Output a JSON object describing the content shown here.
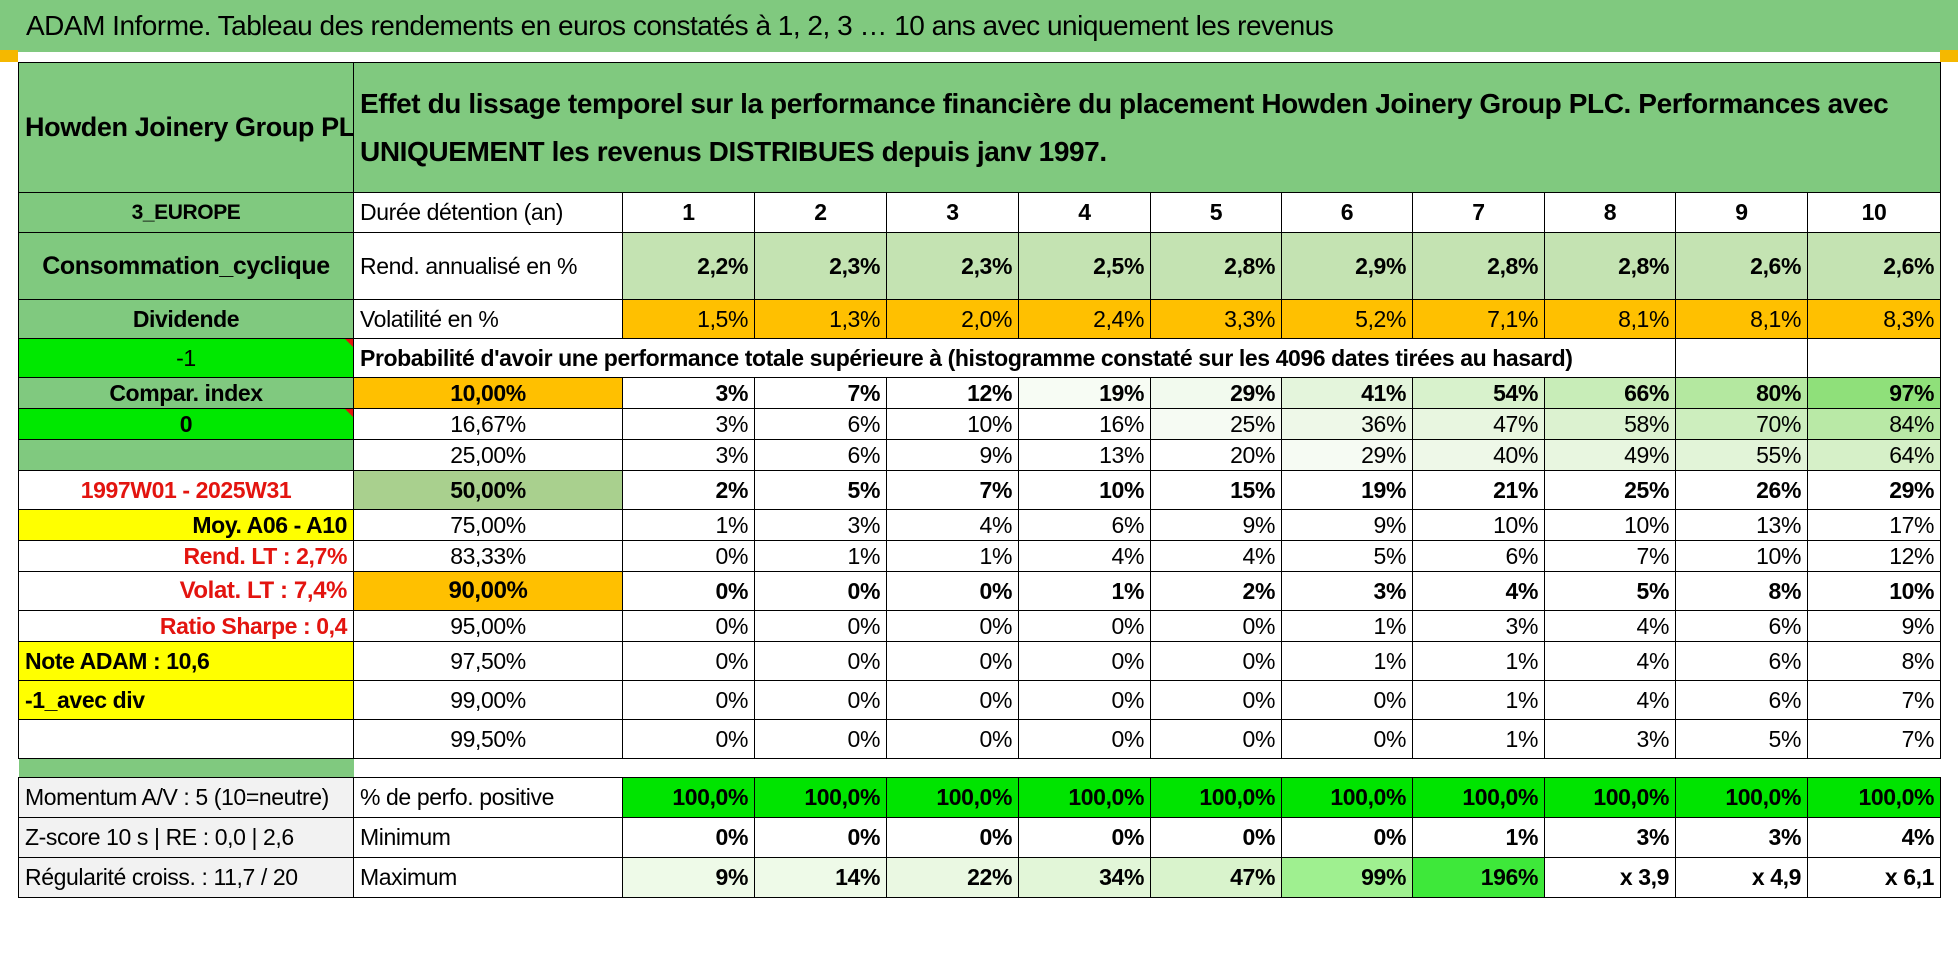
{
  "page_title": "ADAM Informe. Tableau des rendements en euros constatés à 1, 2, 3 … 10 ans avec uniquement les revenus",
  "header": {
    "company": "Howden Joinery Group PLC",
    "description": "Effet du lissage temporel sur la performance financière du placement Howden Joinery Group PLC. Performances avec UNIQUEMENT les revenus DISTRIBUES depuis janv 1997."
  },
  "left_panel": {
    "region": "3_EUROPE",
    "sector": "Consommation_cyclique",
    "type": "Dividende",
    "value_neg1": "-1",
    "compar_index": "Compar. index",
    "value_zero": "0",
    "period": "1997W01 - 2025W31",
    "moy": "Moy. A06 - A10",
    "rend_lt": "Rend. LT :    2,7%",
    "volat_lt": "Volat. LT :    7,4%",
    "sharpe": "Ratio Sharpe :    0,4",
    "note": "Note ADAM : 10,6",
    "avec_div": "-1_avec div",
    "momentum": "Momentum A/V : 5 (10=neutre)",
    "zscore": "Z-score 10 s | RE : 0,0 | 2,6",
    "regularite": "Régularité croiss. : 11,7 / 20"
  },
  "duration": {
    "label": "Durée détention (an)",
    "years": [
      "1",
      "2",
      "3",
      "4",
      "5",
      "6",
      "7",
      "8",
      "9",
      "10"
    ]
  },
  "rend": {
    "label": "Rend. annualisé en %",
    "values": [
      "2,2%",
      "2,3%",
      "2,3%",
      "2,5%",
      "2,8%",
      "2,9%",
      "2,8%",
      "2,8%",
      "2,6%",
      "2,6%"
    ]
  },
  "volat": {
    "label": "Volatilité en %",
    "values": [
      "1,5%",
      "1,3%",
      "2,0%",
      "2,4%",
      "3,3%",
      "5,2%",
      "7,1%",
      "8,1%",
      "8,1%",
      "8,3%"
    ]
  },
  "prob_header": "Probabilité d'avoir une performance totale supérieure à (histogramme constaté sur les 4096 dates tirées au hasard)",
  "prob_rows": [
    {
      "threshold": "10,00%",
      "values": [
        "3%",
        "7%",
        "12%",
        "19%",
        "29%",
        "41%",
        "54%",
        "66%",
        "80%",
        "97%"
      ]
    },
    {
      "threshold": "16,67%",
      "values": [
        "3%",
        "6%",
        "10%",
        "16%",
        "25%",
        "36%",
        "47%",
        "58%",
        "70%",
        "84%"
      ]
    },
    {
      "threshold": "25,00%",
      "values": [
        "3%",
        "6%",
        "9%",
        "13%",
        "20%",
        "29%",
        "40%",
        "49%",
        "55%",
        "64%"
      ]
    },
    {
      "threshold": "50,00%",
      "values": [
        "2%",
        "5%",
        "7%",
        "10%",
        "15%",
        "19%",
        "21%",
        "25%",
        "26%",
        "29%"
      ]
    },
    {
      "threshold": "75,00%",
      "values": [
        "1%",
        "3%",
        "4%",
        "6%",
        "9%",
        "9%",
        "10%",
        "10%",
        "13%",
        "17%"
      ]
    },
    {
      "threshold": "83,33%",
      "values": [
        "0%",
        "1%",
        "1%",
        "4%",
        "4%",
        "5%",
        "6%",
        "7%",
        "10%",
        "12%"
      ]
    },
    {
      "threshold": "90,00%",
      "values": [
        "0%",
        "0%",
        "0%",
        "1%",
        "2%",
        "3%",
        "4%",
        "5%",
        "8%",
        "10%"
      ]
    },
    {
      "threshold": "95,00%",
      "values": [
        "0%",
        "0%",
        "0%",
        "0%",
        "0%",
        "1%",
        "3%",
        "4%",
        "6%",
        "9%"
      ]
    },
    {
      "threshold": "97,50%",
      "values": [
        "0%",
        "0%",
        "0%",
        "0%",
        "0%",
        "1%",
        "1%",
        "4%",
        "6%",
        "8%"
      ]
    },
    {
      "threshold": "99,00%",
      "values": [
        "0%",
        "0%",
        "0%",
        "0%",
        "0%",
        "0%",
        "1%",
        "4%",
        "6%",
        "7%"
      ]
    },
    {
      "threshold": "99,50%",
      "values": [
        "0%",
        "0%",
        "0%",
        "0%",
        "0%",
        "0%",
        "1%",
        "3%",
        "5%",
        "7%"
      ]
    }
  ],
  "positive": {
    "label": "% de perfo. positive",
    "values": [
      "100,0%",
      "100,0%",
      "100,0%",
      "100,0%",
      "100,0%",
      "100,0%",
      "100,0%",
      "100,0%",
      "100,0%",
      "100,0%"
    ]
  },
  "minimum": {
    "label": "Minimum",
    "values": [
      "0%",
      "0%",
      "0%",
      "0%",
      "0%",
      "0%",
      "1%",
      "3%",
      "3%",
      "4%"
    ]
  },
  "maximum": {
    "label": "Maximum",
    "values": [
      "9%",
      "14%",
      "22%",
      "34%",
      "47%",
      "99%",
      "196%",
      "x 3,9",
      "x 4,9",
      "x 6,1"
    ]
  },
  "colors": {
    "title_bg": "#80c97f",
    "left_green": "#80c97f",
    "bright_green": "#00e800",
    "orange": "#ffc000",
    "yellow": "#ffff00",
    "red_text": "#e3140f"
  }
}
